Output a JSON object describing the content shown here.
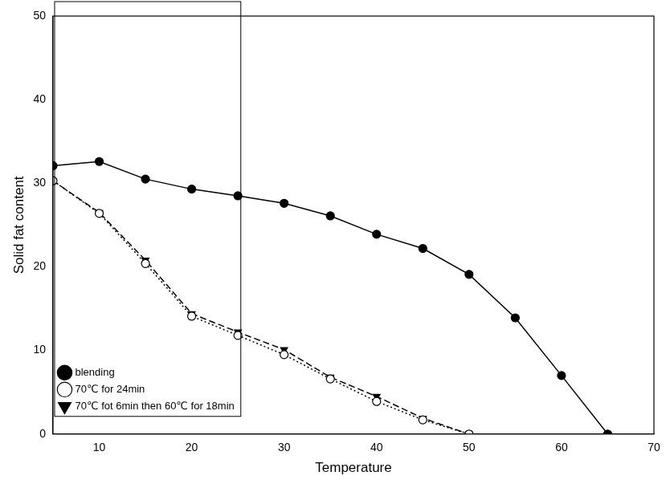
{
  "chart_data": {
    "type": "line",
    "x_label": "Temperature",
    "y_label": "Solid fat content",
    "xlim": [
      5,
      70
    ],
    "xticks": [
      10,
      20,
      30,
      40,
      50,
      60,
      70
    ],
    "ylim": [
      0,
      50
    ],
    "yticks": [
      0,
      10,
      20,
      30,
      40,
      50
    ],
    "grid": false,
    "legend": "upper right",
    "series": [
      {
        "name": "blending",
        "color": "#000000",
        "marker": "circle",
        "line_style": "solid",
        "x": [
          5,
          10,
          15,
          20,
          25,
          30,
          35,
          40,
          45,
          50,
          55,
          60,
          65
        ],
        "values": [
          32.1,
          32.6,
          30.5,
          29.3,
          28.5,
          27.6,
          26.1,
          23.9,
          22.2,
          19.1,
          13.9,
          7.0,
          0
        ]
      },
      {
        "name": "70℃ for 24min",
        "color": "#000000",
        "marker": "open_circle",
        "line_style": "dotted",
        "x": [
          5,
          10,
          15,
          20,
          25,
          30,
          35,
          40,
          45,
          50
        ],
        "values": [
          30.3,
          26.4,
          20.4,
          14.1,
          11.8,
          9.5,
          6.6,
          3.9,
          1.7,
          0
        ]
      },
      {
        "name": "70℃ fot 6min then 60℃ for 18min",
        "color": "#000000",
        "marker": "triangle_down",
        "line_style": "dashed",
        "x": [
          5,
          10,
          15,
          20,
          25,
          30,
          35,
          40,
          45,
          50
        ],
        "values": [
          30.3,
          26.5,
          20.8,
          14.4,
          12.2,
          10.1,
          6.8,
          4.5,
          1.9,
          0
        ]
      }
    ]
  }
}
